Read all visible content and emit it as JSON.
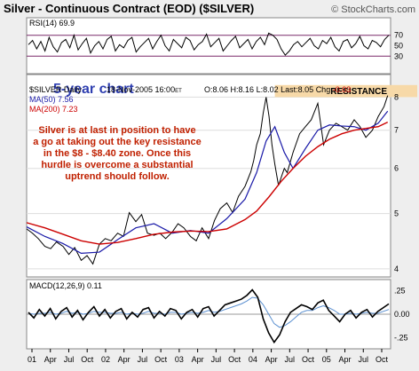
{
  "header": {
    "title": "Silver - Continuous Contract (EOD) ($SILVER)",
    "copyright": "© StockCharts.com"
  },
  "colors": {
    "price": "#000000",
    "ma50": "#1a1aa8",
    "ma200": "#cc0000",
    "annotation": "#c02000",
    "resistance_band": "#f7d9a8",
    "subtitle": "#2f3fb0",
    "panel_bg": "#ffffff",
    "frame_bg": "#eeeeee"
  },
  "chart_data": [
    {
      "type": "line",
      "panel": "rsi",
      "label": "RSI(14) 69.9",
      "ylim": [
        0,
        100
      ],
      "yticks": [
        30,
        50,
        70
      ],
      "reference_lines": [
        30,
        70
      ],
      "values": [
        52,
        60,
        44,
        58,
        40,
        66,
        48,
        38,
        56,
        62,
        46,
        70,
        42,
        54,
        64,
        36,
        50,
        58,
        44,
        62,
        68,
        40,
        52,
        46,
        60,
        66,
        38,
        48,
        56,
        64,
        44,
        58,
        70,
        50,
        40,
        62,
        54,
        46,
        66,
        60,
        42,
        52,
        58,
        72,
        48,
        56,
        64,
        40,
        50,
        60,
        68,
        46,
        54,
        62,
        44,
        58,
        66,
        52,
        74,
        70,
        62,
        44,
        32,
        40,
        52,
        58,
        48,
        56,
        64,
        50,
        44,
        60,
        54,
        66,
        48,
        40,
        58,
        62,
        46,
        54,
        68,
        50,
        44,
        60,
        56,
        48,
        62,
        70
      ]
    },
    {
      "type": "line",
      "panel": "price",
      "title": "5-year chart",
      "legend": [
        {
          "label": "$SILVER Daily",
          "color": "#000000"
        },
        {
          "label": "MA(50) 7.56",
          "color": "#1a1aa8"
        },
        {
          "label": "MA(200) 7.23",
          "color": "#cc0000"
        }
      ],
      "info": {
        "date": "18-Nov-2005",
        "time": "16:00",
        "time_zone": "ET",
        "open": "O:8.06",
        "high": "H:8.16",
        "low": "L:8.02",
        "last": "Last:8.05",
        "change": "Chg:",
        "change_value": "-0.03"
      },
      "annotation": "Silver is at last in position to have a go at taking out the key resistance in the $8 - $8.40 zone. Once this hurdle is overcome a substantial uptrend should follow.",
      "annotation_lines": [
        "Silver is at last in position to have",
        "a go at taking out the key resistance",
        "in the $8 - $8.40 zone. Once this",
        "hurdle is overcome a substantial",
        "uptrend should follow."
      ],
      "resistance_label": "RESISTANCE",
      "resistance_zone": [
        8.0,
        8.4
      ],
      "scale": "log",
      "ylim": [
        3.9,
        8.7
      ],
      "yticks": [
        4,
        5,
        6,
        7,
        8
      ],
      "x_labels": [
        "01",
        "Apr",
        "Jul",
        "Oct",
        "02",
        "Apr",
        "Jul",
        "Oct",
        "03",
        "Apr",
        "Jul",
        "Oct",
        "04",
        "Apr",
        "Jul",
        "Oct",
        "05",
        "Apr",
        "Jul",
        "Oct"
      ],
      "x_range": [
        2000.92,
        2005.92
      ],
      "series": [
        {
          "name": "$SILVER Daily",
          "x": [
            2000.92,
            2001.0,
            2001.08,
            2001.17,
            2001.25,
            2001.33,
            2001.42,
            2001.5,
            2001.58,
            2001.67,
            2001.75,
            2001.83,
            2001.92,
            2002.0,
            2002.08,
            2002.17,
            2002.25,
            2002.33,
            2002.42,
            2002.5,
            2002.58,
            2002.67,
            2002.75,
            2002.83,
            2002.92,
            2003.0,
            2003.08,
            2003.17,
            2003.25,
            2003.33,
            2003.42,
            2003.5,
            2003.58,
            2003.67,
            2003.75,
            2003.83,
            2003.92,
            2004.0,
            2004.04,
            2004.08,
            2004.13,
            2004.17,
            2004.21,
            2004.25,
            2004.29,
            2004.33,
            2004.38,
            2004.42,
            2004.46,
            2004.5,
            2004.58,
            2004.67,
            2004.75,
            2004.83,
            2004.92,
            2005.0,
            2005.08,
            2005.17,
            2005.25,
            2005.33,
            2005.42,
            2005.5,
            2005.58,
            2005.67,
            2005.75,
            2005.83,
            2005.88
          ],
          "values": [
            4.7,
            4.62,
            4.52,
            4.38,
            4.34,
            4.46,
            4.38,
            4.24,
            4.36,
            4.14,
            4.22,
            4.08,
            4.42,
            4.52,
            4.48,
            4.62,
            4.56,
            5.02,
            4.84,
            4.98,
            4.62,
            4.58,
            4.62,
            4.52,
            4.64,
            4.8,
            4.72,
            4.56,
            4.48,
            4.72,
            4.52,
            4.86,
            5.1,
            5.22,
            5.02,
            5.36,
            5.58,
            5.92,
            6.2,
            6.6,
            6.9,
            7.5,
            8.0,
            7.4,
            6.6,
            6.1,
            5.6,
            5.8,
            6.0,
            5.9,
            6.4,
            6.9,
            7.1,
            7.3,
            7.8,
            6.6,
            7.0,
            7.2,
            7.1,
            7.0,
            7.3,
            7.1,
            6.8,
            7.0,
            7.4,
            7.7,
            8.05
          ]
        },
        {
          "name": "MA(50)",
          "x": [
            2000.92,
            2001.17,
            2001.42,
            2001.67,
            2001.92,
            2002.17,
            2002.42,
            2002.67,
            2002.92,
            2003.17,
            2003.42,
            2003.67,
            2003.92,
            2004.08,
            2004.21,
            2004.33,
            2004.46,
            2004.58,
            2004.75,
            2004.92,
            2005.08,
            2005.25,
            2005.42,
            2005.58,
            2005.75,
            2005.88
          ],
          "values": [
            4.74,
            4.56,
            4.43,
            4.26,
            4.28,
            4.5,
            4.72,
            4.8,
            4.62,
            4.67,
            4.62,
            4.9,
            5.3,
            5.9,
            6.7,
            7.1,
            6.4,
            6.0,
            6.5,
            7.0,
            7.15,
            7.12,
            7.1,
            7.0,
            7.2,
            7.56
          ]
        },
        {
          "name": "MA(200)",
          "x": [
            2000.92,
            2001.17,
            2001.42,
            2001.67,
            2001.92,
            2002.17,
            2002.42,
            2002.67,
            2002.92,
            2003.17,
            2003.42,
            2003.67,
            2003.92,
            2004.08,
            2004.25,
            2004.42,
            2004.58,
            2004.75,
            2004.92,
            2005.08,
            2005.25,
            2005.42,
            2005.58,
            2005.75,
            2005.88
          ],
          "values": [
            4.82,
            4.72,
            4.6,
            4.48,
            4.42,
            4.45,
            4.52,
            4.6,
            4.64,
            4.66,
            4.65,
            4.7,
            4.88,
            5.05,
            5.35,
            5.7,
            6.0,
            6.3,
            6.55,
            6.75,
            6.9,
            7.0,
            7.05,
            7.1,
            7.23
          ]
        }
      ]
    },
    {
      "type": "line",
      "panel": "macd",
      "label": "MACD(12,26,9)",
      "label_value": "0.11",
      "ylim": [
        -0.35,
        0.35
      ],
      "yticks": [
        -0.25,
        0.0,
        0.25
      ],
      "ytick_labels": [
        "-.25",
        "0.00",
        ".25"
      ],
      "reference_lines": [
        0.0
      ],
      "values": [
        0.02,
        -0.04,
        0.05,
        -0.02,
        0.06,
        -0.05,
        0.03,
        0.07,
        -0.03,
        0.04,
        -0.06,
        0.02,
        0.08,
        -0.02,
        0.05,
        -0.04,
        0.03,
        0.06,
        -0.05,
        0.02,
        -0.03,
        0.05,
        0.07,
        -0.04,
        0.03,
        -0.02,
        0.06,
        0.04,
        -0.05,
        0.02,
        0.05,
        -0.03,
        0.06,
        0.08,
        -0.02,
        0.04,
        0.1,
        0.12,
        0.14,
        0.16,
        0.2,
        0.26,
        0.18,
        -0.05,
        -0.2,
        -0.3,
        -0.22,
        -0.08,
        0.02,
        0.06,
        0.1,
        0.08,
        0.05,
        0.12,
        0.15,
        0.04,
        -0.02,
        -0.08,
        0.0,
        0.04,
        -0.04,
        0.02,
        0.05,
        -0.03,
        0.03,
        0.07,
        0.11
      ],
      "signal_values": [
        0.01,
        0.0,
        0.01,
        0.01,
        0.02,
        0.0,
        0.01,
        0.03,
        0.01,
        0.02,
        0.0,
        0.01,
        0.03,
        0.02,
        0.02,
        0.01,
        0.01,
        0.02,
        0.0,
        0.01,
        0.0,
        0.01,
        0.03,
        0.01,
        0.01,
        0.0,
        0.02,
        0.02,
        0.0,
        0.01,
        0.02,
        0.01,
        0.02,
        0.04,
        0.02,
        0.03,
        0.05,
        0.07,
        0.09,
        0.11,
        0.14,
        0.18,
        0.17,
        0.1,
        0.0,
        -0.1,
        -0.14,
        -0.12,
        -0.08,
        -0.03,
        0.02,
        0.04,
        0.04,
        0.07,
        0.09,
        0.07,
        0.04,
        0.0,
        0.0,
        0.01,
        0.0,
        0.01,
        0.02,
        0.01,
        0.01,
        0.03,
        0.05
      ]
    }
  ]
}
